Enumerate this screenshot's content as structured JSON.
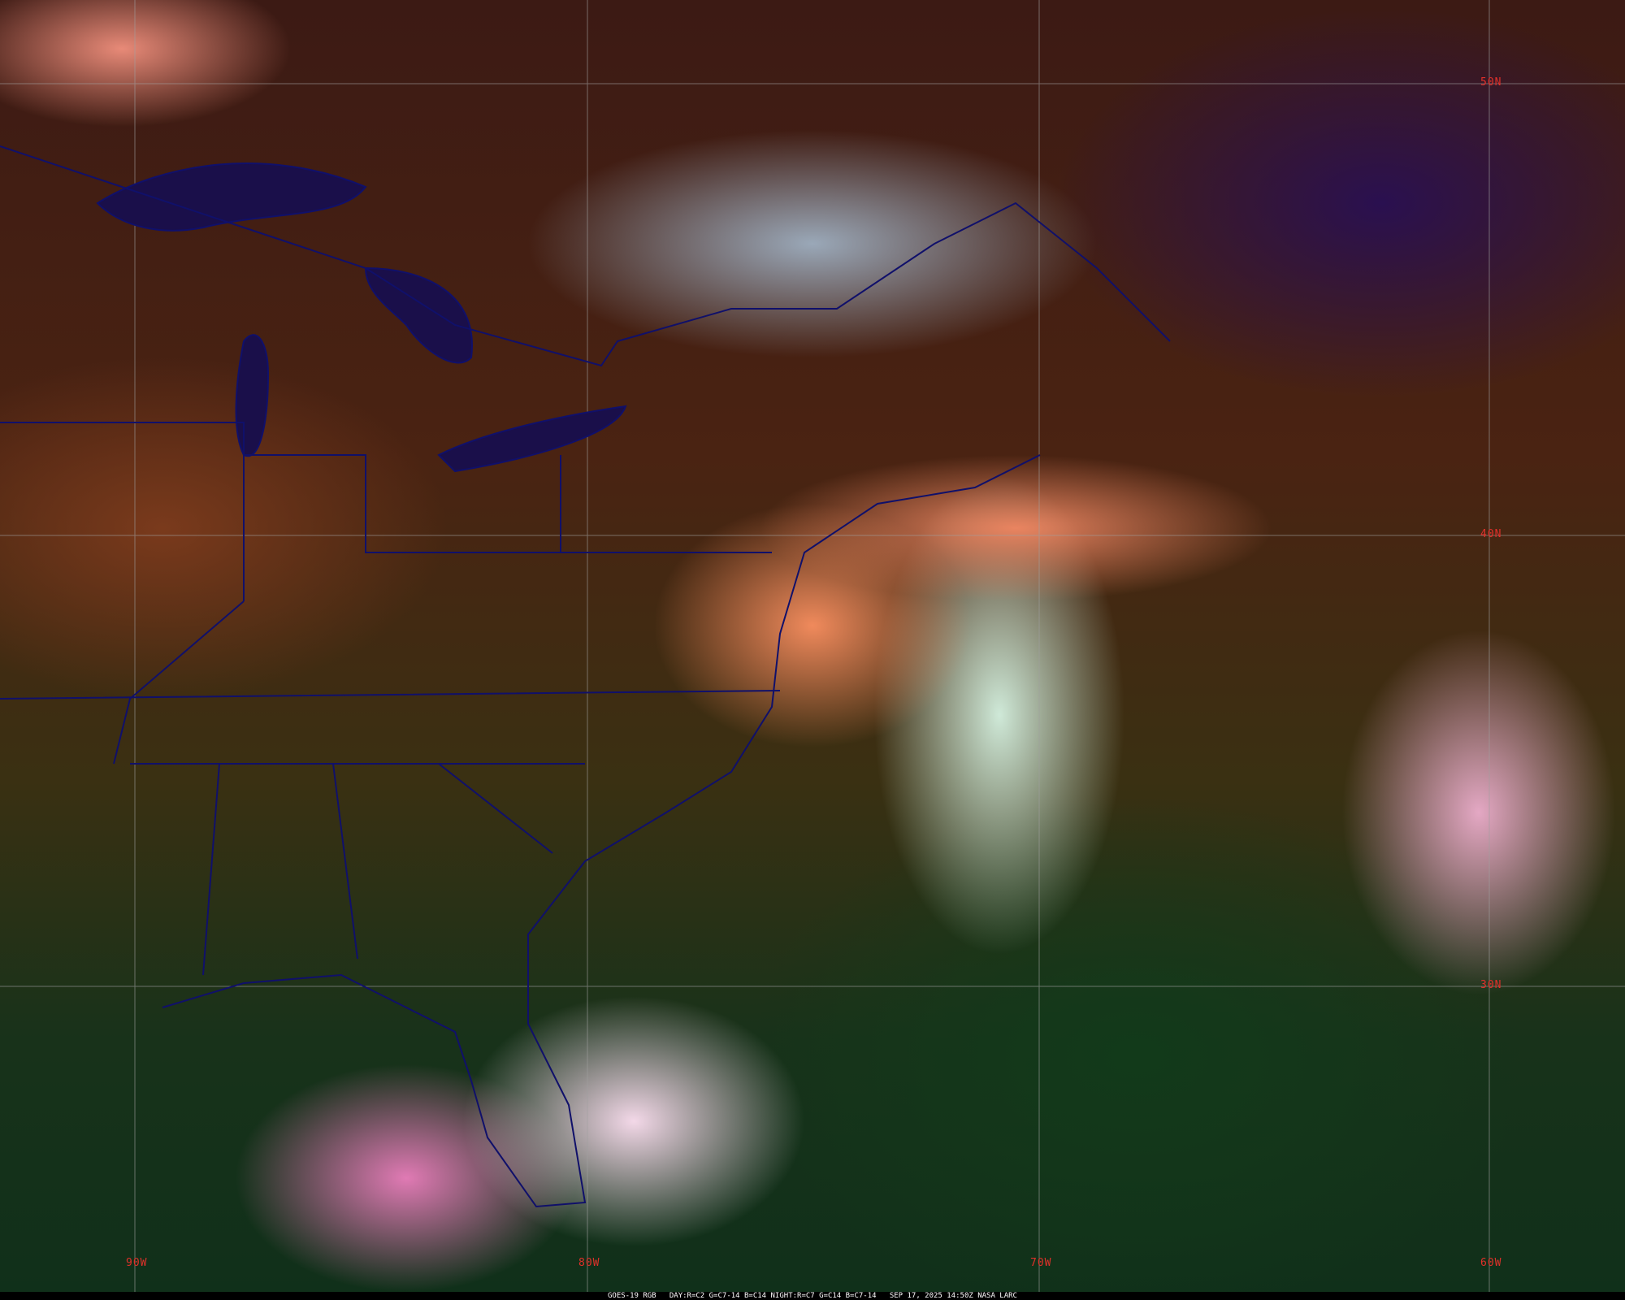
{
  "map": {
    "latitude_labels": [
      "50N",
      "40N",
      "30N"
    ],
    "longitude_labels": [
      "90W",
      "80W",
      "70W",
      "60W"
    ],
    "grid_color": "#a0a0a0",
    "label_color": "#e0302a",
    "border_color": "#10106a"
  },
  "caption": {
    "product": "GOES-19 RGB",
    "day_recipe": "DAY:R=C2 G=C7-14 B=C14",
    "night_recipe": "NIGHT:R=C7 G=C14 B=C7-14",
    "timestamp": "SEP 17, 2025 14:50Z",
    "credit": "NASA LARC"
  }
}
